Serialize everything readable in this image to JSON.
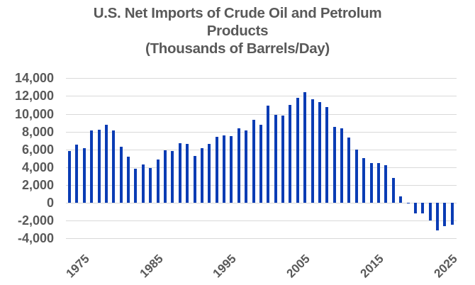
{
  "chart": {
    "title_line1": "U.S. Net Imports of Crude Oil and Petrolum",
    "title_line2": "Products",
    "subtitle": "(Thousands of Barrels/Day)"
  },
  "colors": {
    "bar": "#0a3cb4",
    "grid": "#d9d9d9",
    "text": "#595959"
  },
  "chart_data": {
    "type": "bar",
    "title": "U.S. Net Imports of Crude Oil and Petrolum Products",
    "subtitle": "(Thousands of Barrels/Day)",
    "xlabel": "",
    "ylabel": "",
    "ylim": [
      -4000,
      14000
    ],
    "yticks": [
      "14,000",
      "12,000",
      "10,000",
      "8,000",
      "6,000",
      "4,000",
      "2,000",
      "0",
      "-2,000",
      "-4,000"
    ],
    "ytick_values": [
      14000,
      12000,
      10000,
      8000,
      6000,
      4000,
      2000,
      0,
      -2000,
      -4000
    ],
    "xtick_labels": [
      "1975",
      "1985",
      "1995",
      "2005",
      "2015",
      "2025"
    ],
    "grid": true,
    "legend": null,
    "categories": [
      1973,
      1974,
      1975,
      1976,
      1977,
      1978,
      1979,
      1980,
      1981,
      1982,
      1983,
      1984,
      1985,
      1986,
      1987,
      1988,
      1989,
      1990,
      1991,
      1992,
      1993,
      1994,
      1995,
      1996,
      1997,
      1998,
      1999,
      2000,
      2001,
      2002,
      2003,
      2004,
      2005,
      2006,
      2007,
      2008,
      2009,
      2010,
      2011,
      2012,
      2013,
      2014,
      2015,
      2016,
      2017,
      2018,
      2019,
      2020,
      2021,
      2022,
      2023,
      2024,
      2025
    ],
    "values": [
      5800,
      6500,
      6100,
      8100,
      8200,
      8800,
      8100,
      6300,
      5200,
      3800,
      4300,
      3900,
      4900,
      5900,
      5800,
      6700,
      6600,
      5300,
      6100,
      6600,
      7400,
      7600,
      7500,
      8400,
      8100,
      9300,
      8800,
      10900,
      9900,
      9800,
      11000,
      11800,
      12400,
      11600,
      11300,
      10800,
      8500,
      8400,
      7300,
      6000,
      5000,
      4500,
      4500,
      4200,
      2800,
      700,
      -100,
      -1200,
      -1200,
      -2000,
      -3100,
      -2650,
      -2500
    ]
  }
}
